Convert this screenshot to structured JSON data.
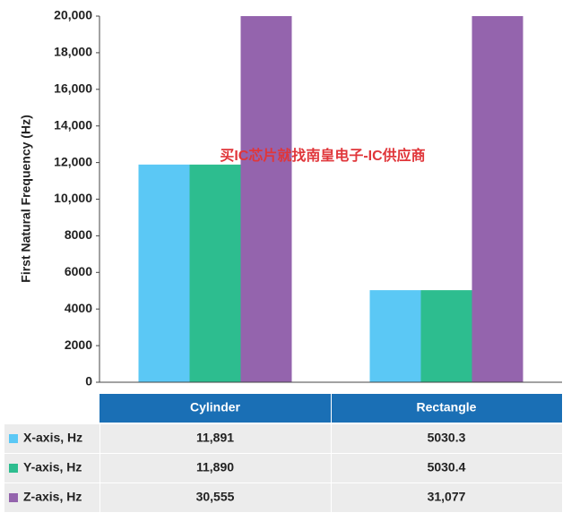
{
  "chart_data": {
    "type": "bar",
    "y_label": "First Natural Frequency (Hz)",
    "annotation": "买IC芯片就找南皇电子-IC供应商",
    "categories": [
      "Cylinder",
      "Rectangle"
    ],
    "series": [
      {
        "name": "X-axis, Hz",
        "color": "#5bc8f5",
        "values": [
          11891,
          5030.3
        ],
        "value_labels": [
          "11,891",
          "5030.3"
        ]
      },
      {
        "name": "Y-axis, Hz",
        "color": "#2dbd8f",
        "values": [
          11890,
          5030.4
        ],
        "value_labels": [
          "11,890",
          "5030.4"
        ]
      },
      {
        "name": "Z-axis, Hz",
        "color": "#9464ad",
        "values": [
          30555,
          31077
        ],
        "value_labels": [
          "30,555",
          "31,077"
        ]
      }
    ],
    "ylim": [
      0,
      20000
    ],
    "yticks": [
      0,
      2000,
      4000,
      6000,
      8000,
      {
        "value": 10000,
        "label": "10,000"
      },
      {
        "value": 12000,
        "label": "12,000"
      },
      {
        "value": 14000,
        "label": "14,000"
      },
      {
        "value": 16000,
        "label": "16,000"
      },
      {
        "value": 18000,
        "label": "18,000"
      },
      {
        "value": 20000,
        "label": "20,000"
      }
    ],
    "grid": false,
    "header_color": "#1a6fb5"
  }
}
